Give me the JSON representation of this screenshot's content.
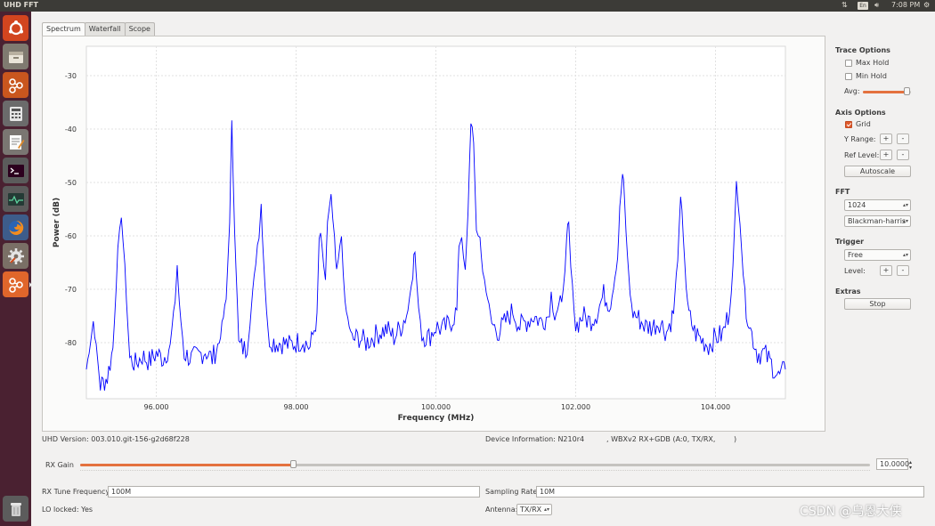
{
  "window": {
    "title": "UHD FFT"
  },
  "topbar": {
    "keyboard": "En",
    "clock": "7:08 PM"
  },
  "launcher": [
    "ubuntu-logo",
    "files",
    "gnuradio",
    "calculator",
    "text-editor",
    "terminal",
    "system-monitor",
    "firefox",
    "system-settings",
    "gnuradio-active",
    "trash"
  ],
  "tabs": [
    "Spectrum",
    "Waterfall",
    "Scope"
  ],
  "active_tab": "Spectrum",
  "controls": {
    "trace_options": "Trace Options",
    "max_hold": "Max Hold",
    "min_hold": "Min Hold",
    "avg": "Avg:",
    "avg_level": 0.9,
    "axis_options": "Axis Options",
    "grid": "Grid",
    "y_range": "Y Range:",
    "ref_level": "Ref Level:",
    "plus": "+",
    "minus": "-",
    "autoscale": "Autoscale",
    "fft": "FFT",
    "fft_size": "1024",
    "window": "Blackman-harris",
    "trigger": "Trigger",
    "trigger_mode": "Free",
    "level": "Level:",
    "extras": "Extras",
    "stop": "Stop"
  },
  "info": {
    "uhd_version": "UHD Version: 003.010.git-156-g2d68f228",
    "device_info": "Device Information: N210r4",
    "device_info2": ", WBXv2 RX+GDB (A:0, TX/RX,",
    "device_info3": ")",
    "rx_gain_label": "RX Gain",
    "rx_gain_value": "10.0000",
    "rx_gain_level": 0.27,
    "tune_label": "RX Tune Frequency:",
    "tune_value": "100M",
    "rate_label": "Sampling Rate:",
    "rate_value": "10M",
    "lo_locked": "LO locked: Yes",
    "antenna_label": "Antenna:",
    "antenna_value": "TX/RX"
  },
  "watermark": "CSDN @乌恩大侠",
  "chart_data": {
    "type": "line",
    "xlabel": "Frequency (MHz)",
    "ylabel": "Power (dB)",
    "xlim": [
      95.0,
      105.0
    ],
    "ylim": [
      -90.5,
      -24.5
    ],
    "xticks": [
      96.0,
      98.0,
      100.0,
      102.0,
      104.0
    ],
    "xtick_labels": [
      "96.000",
      "98.000",
      "100.000",
      "102.000",
      "104.000"
    ],
    "yticks": [
      -30,
      -40,
      -50,
      -60,
      -70,
      -80
    ],
    "ytick_labels": [
      "-30",
      "-40",
      "-50",
      "-60",
      "-70",
      "-80"
    ],
    "grid": true,
    "color": "#0000ff",
    "series": [
      {
        "x": [
          95.0,
          95.1,
          95.2,
          95.3,
          95.38,
          95.45,
          95.5,
          95.55,
          95.62,
          95.7,
          95.8,
          95.9,
          96.0,
          96.1,
          96.2,
          96.27,
          96.3,
          96.33,
          96.4,
          96.5,
          96.6,
          96.7,
          96.8,
          96.9,
          97.0,
          97.05,
          97.08,
          97.12,
          97.18,
          97.3,
          97.4,
          97.47,
          97.5,
          97.53,
          97.6,
          97.7,
          97.8,
          97.9,
          98.0,
          98.1,
          98.2,
          98.3,
          98.33,
          98.37,
          98.42,
          98.45,
          98.5,
          98.55,
          98.58,
          98.65,
          98.7,
          98.8,
          98.9,
          99.0,
          99.1,
          99.2,
          99.3,
          99.4,
          99.5,
          99.6,
          99.67,
          99.7,
          99.73,
          99.8,
          99.9,
          100.0,
          100.1,
          100.2,
          100.3,
          100.33,
          100.37,
          100.42,
          100.46,
          100.5,
          100.54,
          100.58,
          100.63,
          100.67,
          100.72,
          100.8,
          100.9,
          101.0,
          101.1,
          101.2,
          101.3,
          101.4,
          101.5,
          101.6,
          101.65,
          101.7,
          101.8,
          101.87,
          101.9,
          101.93,
          102.0,
          102.1,
          102.2,
          102.3,
          102.4,
          102.5,
          102.6,
          102.63,
          102.67,
          102.7,
          102.74,
          102.8,
          102.9,
          103.0,
          103.1,
          103.2,
          103.3,
          103.4,
          103.46,
          103.5,
          103.54,
          103.6,
          103.7,
          103.8,
          103.9,
          104.0,
          104.1,
          104.2,
          104.25,
          104.3,
          104.35,
          104.42,
          104.5,
          104.6,
          104.7,
          104.8,
          104.9,
          105.0
        ],
        "y": [
          -85.0,
          -76.0,
          -88.0,
          -86.5,
          -81.0,
          -63.0,
          -56.0,
          -66.0,
          -83.0,
          -84.0,
          -82.5,
          -83.5,
          -82.0,
          -83.0,
          -80.5,
          -72.0,
          -65.5,
          -73.0,
          -82.0,
          -83.0,
          -82.5,
          -81.5,
          -83.0,
          -80.0,
          -72.0,
          -57.0,
          -39.0,
          -58.0,
          -80.5,
          -81.5,
          -68.0,
          -58.5,
          -54.0,
          -63.0,
          -79.0,
          -80.0,
          -80.0,
          -80.5,
          -80.0,
          -79.5,
          -81.0,
          -75.0,
          -60.5,
          -62.0,
          -69.0,
          -57.0,
          -52.5,
          -62.0,
          -67.0,
          -60.0,
          -73.0,
          -79.5,
          -79.0,
          -80.0,
          -79.0,
          -78.0,
          -77.5,
          -79.0,
          -77.0,
          -74.0,
          -66.0,
          -63.0,
          -70.0,
          -78.5,
          -79.0,
          -77.0,
          -77.5,
          -76.5,
          -74.0,
          -61.0,
          -60.0,
          -67.0,
          -56.0,
          -38.0,
          -42.0,
          -61.0,
          -60.0,
          -67.0,
          -70.0,
          -76.5,
          -78.0,
          -76.0,
          -74.0,
          -77.0,
          -76.0,
          -75.0,
          -76.0,
          -75.0,
          -71.0,
          -74.0,
          -73.0,
          -62.0,
          -58.0,
          -66.0,
          -77.0,
          -75.0,
          -76.0,
          -74.5,
          -71.0,
          -73.0,
          -64.0,
          -55.0,
          -48.5,
          -54.0,
          -64.0,
          -74.0,
          -75.5,
          -77.0,
          -77.0,
          -76.0,
          -78.0,
          -74.5,
          -64.0,
          -54.0,
          -60.0,
          -74.0,
          -78.0,
          -79.5,
          -80.5,
          -79.0,
          -78.5,
          -74.0,
          -66.0,
          -50.0,
          -57.0,
          -72.0,
          -77.5,
          -82.0,
          -82.0,
          -84.0,
          -86.5,
          -85.0
        ]
      }
    ]
  }
}
